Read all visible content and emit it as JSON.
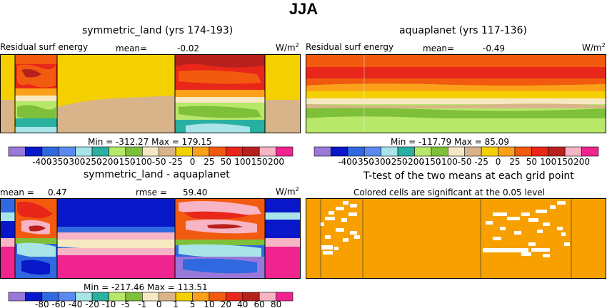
{
  "figure_title": "JJA",
  "colors": {
    "land": "#d9b48a",
    "yellow": "#f5d000",
    "orange": "#fba018",
    "darkorange": "#f25a10",
    "red": "#e8261a",
    "darkred": "#b8201e",
    "pink": "#f7b4c4",
    "magenta": "#f0248e",
    "lightgreen": "#b8e86a",
    "green": "#7ec03a",
    "teal": "#2ab0a0",
    "cyan": "#a8e4e8",
    "blue": "#3068e0",
    "darkblue": "#0818c8",
    "purple": "#9878d8",
    "cream": "#f6e8c0",
    "signif": "#f7a000"
  },
  "panels": {
    "p1": {
      "title": "symmetric_land (yrs 174-193)",
      "left_label": "Residual surf energy",
      "mean_label": "mean=",
      "mean_value": "-0.02",
      "units": "W/m",
      "units_sup": "2",
      "min_max": "Min = -312.27 Max = 179.15"
    },
    "p2": {
      "title": "aquaplanet (yrs 117-136)",
      "left_label": "Residual surf energy",
      "mean_label": "mean=",
      "mean_value": "-0.49",
      "units": "W/m",
      "units_sup": "2",
      "min_max": "Min = -117.79 Max = 85.09"
    },
    "p3": {
      "title": "symmetric_land - aquaplanet",
      "mean_label": "mean =",
      "mean_value": "0.47",
      "rmse_label": "rmse =",
      "rmse_value": "59.40",
      "units": "W/m",
      "units_sup": "2",
      "min_max": "Min = -217.46 Max = 113.51"
    },
    "p4": {
      "title": "T-test of the two means at each grid point",
      "subtitle": "Colored cells are significant at the 0.05 level"
    }
  },
  "chart_data": [
    {
      "type": "heatmap",
      "title": "symmetric_land (yrs 174-193)",
      "field": "Residual surf energy",
      "units": "W/m2",
      "mean": -0.02,
      "min": -312.27,
      "max": 179.15
    },
    {
      "type": "heatmap",
      "title": "aquaplanet (yrs 117-136)",
      "field": "Residual surf energy",
      "units": "W/m2",
      "mean": -0.49,
      "min": -117.79,
      "max": 85.09
    },
    {
      "type": "heatmap",
      "title": "symmetric_land - aquaplanet",
      "units": "W/m2",
      "mean": 0.47,
      "rmse": 59.4,
      "min": -217.46,
      "max": 113.51
    },
    {
      "type": "heatmap",
      "title": "T-test of the two means at each grid point",
      "subtitle": "Colored cells are significant at the 0.05 level"
    }
  ],
  "colorbar1": {
    "colors": [
      "purple",
      "darkblue",
      "blue",
      "blue2",
      "cyan",
      "teal",
      "lightgreen",
      "green",
      "cream",
      "land",
      "yellow",
      "orange",
      "darkorange",
      "red",
      "darkred",
      "pink",
      "magenta"
    ],
    "labels": [
      "-400",
      "-350",
      "-300",
      "-250",
      "-200",
      "-150",
      "-100",
      "-50",
      "-25",
      "0",
      "25",
      "50",
      "100",
      "150",
      "200"
    ]
  },
  "colorbar2": {
    "colors": [
      "purple",
      "darkblue",
      "blue",
      "blue2",
      "cyan",
      "teal",
      "lightgreen",
      "green",
      "cream",
      "land",
      "yellow",
      "orange",
      "darkorange",
      "red",
      "darkred",
      "pink",
      "magenta"
    ],
    "labels": [
      "-400",
      "-350",
      "-300",
      "-250",
      "-200",
      "-150",
      "-100",
      "-50",
      "-25",
      "0",
      "25",
      "50",
      "100",
      "150",
      "200"
    ]
  },
  "colorbar3": {
    "colors": [
      "purple",
      "darkblue",
      "blue",
      "blue2",
      "cyan",
      "teal",
      "lightgreen",
      "green",
      "cream",
      "land",
      "yellow",
      "orange",
      "darkorange",
      "red",
      "darkred",
      "pink",
      "magenta"
    ],
    "labels": [
      "-80",
      "-60",
      "-40",
      "-20",
      "-10",
      "-5",
      "-1",
      "0",
      "1",
      "5",
      "10",
      "20",
      "40",
      "60",
      "80"
    ]
  }
}
